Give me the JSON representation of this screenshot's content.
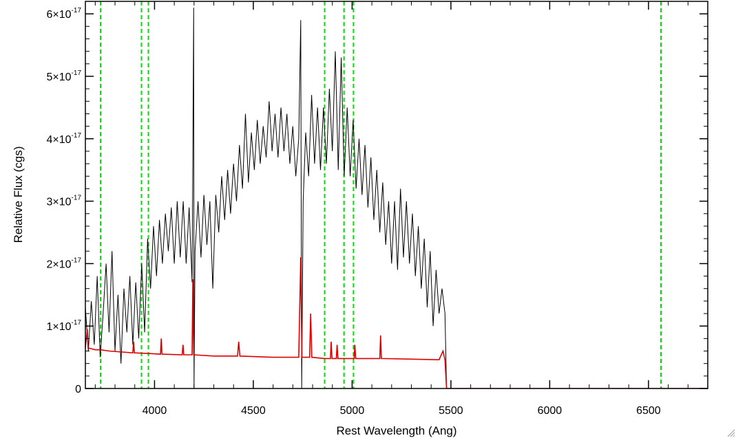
{
  "chart_data": {
    "type": "line",
    "title": "",
    "xlabel": "Rest Wavelength (Ang)",
    "ylabel": "Relative Flux (cgs)",
    "xlim": [
      3650,
      6800
    ],
    "ylim": [
      0,
      6.2e-17
    ],
    "x_ticks": [
      {
        "value": 4000,
        "label": "4000"
      },
      {
        "value": 4500,
        "label": "4500"
      },
      {
        "value": 5000,
        "label": "5000"
      },
      {
        "value": 5500,
        "label": "5500"
      },
      {
        "value": 6000,
        "label": "6000"
      },
      {
        "value": 6500,
        "label": "6500"
      }
    ],
    "y_ticks": [
      {
        "value": 0,
        "label": "0",
        "exp": ""
      },
      {
        "value": 1e-17,
        "label": "1×10",
        "exp": "-17"
      },
      {
        "value": 2e-17,
        "label": "2×10",
        "exp": "-17"
      },
      {
        "value": 3e-17,
        "label": "3×10",
        "exp": "-17"
      },
      {
        "value": 4e-17,
        "label": "4×10",
        "exp": "-17"
      },
      {
        "value": 5e-17,
        "label": "5×10",
        "exp": "-17"
      },
      {
        "value": 6e-17,
        "label": "6×10",
        "exp": "-17"
      }
    ],
    "vlines": {
      "x": [
        3727,
        3934,
        3969,
        4861,
        4959,
        5007,
        6563
      ],
      "color": "#00dd00",
      "style": "dashed"
    },
    "series": [
      {
        "color": "#000000",
        "points": [
          [
            3650,
            1.3e-17
          ],
          [
            3665,
            6e-18
          ],
          [
            3680,
            1.4e-17
          ],
          [
            3695,
            7e-18
          ],
          [
            3710,
            1.8e-17
          ],
          [
            3725,
            5e-18
          ],
          [
            3740,
            1.2e-17
          ],
          [
            3755,
            2e-17
          ],
          [
            3770,
            9e-18
          ],
          [
            3785,
            2.2e-17
          ],
          [
            3800,
            6e-18
          ],
          [
            3815,
            1.5e-17
          ],
          [
            3830,
            4e-18
          ],
          [
            3845,
            1.6e-17
          ],
          [
            3860,
            9e-18
          ],
          [
            3875,
            1.8e-17
          ],
          [
            3890,
            7e-18
          ],
          [
            3905,
            1.7e-17
          ],
          [
            3920,
            8e-18
          ],
          [
            3935,
            2e-17
          ],
          [
            3950,
            9e-18
          ],
          [
            3965,
            2.4e-17
          ],
          [
            3980,
            1.6e-17
          ],
          [
            3995,
            2.6e-17
          ],
          [
            4010,
            1.8e-17
          ],
          [
            4025,
            2.7e-17
          ],
          [
            4040,
            2e-17
          ],
          [
            4055,
            2.8e-17
          ],
          [
            4070,
            2.2e-17
          ],
          [
            4085,
            2.9e-17
          ],
          [
            4100,
            2e-17
          ],
          [
            4115,
            3e-17
          ],
          [
            4130,
            2.1e-17
          ],
          [
            4145,
            3e-17
          ],
          [
            4160,
            2e-17
          ],
          [
            4175,
            2.9e-17
          ],
          [
            4190,
            1.7e-17
          ],
          [
            4198,
            6.1e-17
          ],
          [
            4200,
            0.0
          ],
          [
            4205,
            2.2e-17
          ],
          [
            4220,
            3e-17
          ],
          [
            4235,
            2.1e-17
          ],
          [
            4250,
            3.1e-17
          ],
          [
            4265,
            2.3e-17
          ],
          [
            4280,
            3e-17
          ],
          [
            4295,
            1.6e-17
          ],
          [
            4310,
            3.1e-17
          ],
          [
            4325,
            2.5e-17
          ],
          [
            4340,
            3.4e-17
          ],
          [
            4355,
            2.7e-17
          ],
          [
            4370,
            3.5e-17
          ],
          [
            4385,
            2.8e-17
          ],
          [
            4400,
            3.6e-17
          ],
          [
            4415,
            3e-17
          ],
          [
            4430,
            3.9e-17
          ],
          [
            4445,
            3.2e-17
          ],
          [
            4460,
            4.4e-17
          ],
          [
            4475,
            3.3e-17
          ],
          [
            4490,
            4.1e-17
          ],
          [
            4505,
            3.5e-17
          ],
          [
            4520,
            4.3e-17
          ],
          [
            4535,
            3.6e-17
          ],
          [
            4550,
            4.2e-17
          ],
          [
            4565,
            3.7e-17
          ],
          [
            4580,
            4.6e-17
          ],
          [
            4595,
            3.8e-17
          ],
          [
            4610,
            4.4e-17
          ],
          [
            4625,
            3.7e-17
          ],
          [
            4640,
            4.5e-17
          ],
          [
            4655,
            3.8e-17
          ],
          [
            4670,
            4.4e-17
          ],
          [
            4685,
            3.6e-17
          ],
          [
            4700,
            4.2e-17
          ],
          [
            4715,
            3.4e-17
          ],
          [
            4730,
            4e-17
          ],
          [
            4740,
            5.9e-17
          ],
          [
            4745,
            0.0
          ],
          [
            4752,
            3e-17
          ],
          [
            4765,
            4.1e-17
          ],
          [
            4780,
            3.4e-17
          ],
          [
            4795,
            4.7e-17
          ],
          [
            4810,
            3.6e-17
          ],
          [
            4825,
            4.5e-17
          ],
          [
            4840,
            3.5e-17
          ],
          [
            4855,
            4.5e-17
          ],
          [
            4870,
            3.6e-17
          ],
          [
            4885,
            4.8e-17
          ],
          [
            4900,
            3.8e-17
          ],
          [
            4915,
            5.4e-17
          ],
          [
            4930,
            3.5e-17
          ],
          [
            4945,
            5.3e-17
          ],
          [
            4960,
            3.4e-17
          ],
          [
            4975,
            4.5e-17
          ],
          [
            4990,
            3.4e-17
          ],
          [
            5005,
            4.3e-17
          ],
          [
            5020,
            3.2e-17
          ],
          [
            5035,
            4e-17
          ],
          [
            5050,
            3.1e-17
          ],
          [
            5065,
            3.9e-17
          ],
          [
            5080,
            2.9e-17
          ],
          [
            5095,
            3.7e-17
          ],
          [
            5110,
            2.7e-17
          ],
          [
            5125,
            3.5e-17
          ],
          [
            5140,
            2.5e-17
          ],
          [
            5155,
            3.3e-17
          ],
          [
            5170,
            2.3e-17
          ],
          [
            5185,
            3e-17
          ],
          [
            5200,
            2e-17
          ],
          [
            5215,
            3e-17
          ],
          [
            5230,
            1.9e-17
          ],
          [
            5245,
            3.2e-17
          ],
          [
            5260,
            2.1e-17
          ],
          [
            5275,
            3e-17
          ],
          [
            5290,
            2e-17
          ],
          [
            5305,
            2.8e-17
          ],
          [
            5320,
            1.8e-17
          ],
          [
            5335,
            2.6e-17
          ],
          [
            5350,
            1.6e-17
          ],
          [
            5365,
            2.4e-17
          ],
          [
            5380,
            1.3e-17
          ],
          [
            5395,
            2.2e-17
          ],
          [
            5410,
            1e-17
          ],
          [
            5425,
            1.9e-17
          ],
          [
            5440,
            1.2e-17
          ],
          [
            5455,
            1.6e-17
          ],
          [
            5470,
            1.2e-17
          ],
          [
            5478,
            0.0
          ]
        ]
      },
      {
        "color": "#dd0000",
        "points": [
          [
            3650,
            6.5e-18
          ],
          [
            3660,
            9.5e-18
          ],
          [
            3664,
            6.5e-18
          ],
          [
            3700,
            6.2e-18
          ],
          [
            3727,
            6.2e-18
          ],
          [
            3770,
            6e-18
          ],
          [
            3890,
            5.7e-18
          ],
          [
            3894,
            7.5e-18
          ],
          [
            3898,
            5.7e-18
          ],
          [
            3970,
            5.6e-18
          ],
          [
            4030,
            5.5e-18
          ],
          [
            4034,
            8e-18
          ],
          [
            4038,
            5.5e-18
          ],
          [
            4140,
            5.4e-18
          ],
          [
            4144,
            7e-18
          ],
          [
            4148,
            5.4e-18
          ],
          [
            4190,
            5.4e-18
          ],
          [
            4194,
            1.75e-17
          ],
          [
            4198,
            5.4e-18
          ],
          [
            4300,
            5.2e-18
          ],
          [
            4420,
            5.2e-18
          ],
          [
            4426,
            7.5e-18
          ],
          [
            4432,
            5.2e-18
          ],
          [
            4600,
            5e-18
          ],
          [
            4730,
            5e-18
          ],
          [
            4740,
            2.1e-17
          ],
          [
            4746,
            5e-18
          ],
          [
            4785,
            5e-18
          ],
          [
            4790,
            1.2e-17
          ],
          [
            4796,
            5e-18
          ],
          [
            4860,
            4.8e-18
          ],
          [
            4890,
            4.8e-18
          ],
          [
            4894,
            7.5e-18
          ],
          [
            4898,
            4.8e-18
          ],
          [
            4920,
            4.8e-18
          ],
          [
            4924,
            7e-18
          ],
          [
            4928,
            4.8e-18
          ],
          [
            5010,
            4.8e-18
          ],
          [
            5014,
            7e-18
          ],
          [
            5018,
            4.8e-18
          ],
          [
            5140,
            4.8e-18
          ],
          [
            5144,
            8.5e-18
          ],
          [
            5148,
            4.8e-18
          ],
          [
            5300,
            4.7e-18
          ],
          [
            5440,
            4.6e-18
          ],
          [
            5460,
            6e-18
          ],
          [
            5470,
            4.6e-18
          ],
          [
            5478,
            0.0
          ],
          [
            6800,
            0.0
          ]
        ]
      }
    ]
  }
}
